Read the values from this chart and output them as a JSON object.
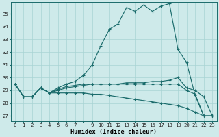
{
  "xlabel": "Humidex (Indice chaleur)",
  "bg_color": "#ceeaea",
  "line_color": "#1a6b6b",
  "grid_color": "#a8d4d4",
  "xtick_labels": [
    "0",
    "1",
    "2",
    "3",
    "4",
    "5",
    "6",
    "7",
    "",
    "9",
    "10",
    "11",
    "12",
    "13",
    "14",
    "15",
    "16",
    "17",
    "18",
    "19",
    "20",
    "21",
    "22",
    "23"
  ],
  "ytick_labels": [
    "27",
    "28",
    "29",
    "30",
    "31",
    "32",
    "33",
    "34",
    "35"
  ],
  "ylim": [
    26.6,
    35.9
  ],
  "xlim": [
    -0.5,
    23.5
  ],
  "series": [
    [
      29.5,
      28.5,
      28.5,
      29.2,
      28.8,
      29.2,
      29.5,
      29.7,
      30.2,
      31.0,
      32.5,
      33.8,
      34.2,
      35.5,
      35.2,
      35.7,
      35.2,
      35.6,
      35.8,
      32.2,
      31.2,
      28.6,
      27.0,
      27.0
    ],
    [
      29.5,
      28.5,
      28.5,
      29.2,
      28.8,
      29.0,
      29.2,
      29.3,
      29.4,
      29.5,
      29.5,
      29.5,
      29.5,
      29.6,
      29.6,
      29.6,
      29.7,
      29.7,
      29.8,
      30.0,
      29.2,
      29.0,
      28.5,
      27.0
    ],
    [
      29.5,
      28.5,
      28.5,
      29.2,
      28.8,
      28.8,
      28.8,
      28.8,
      28.8,
      28.7,
      28.7,
      28.6,
      28.5,
      28.4,
      28.3,
      28.2,
      28.1,
      28.0,
      27.9,
      27.8,
      27.6,
      27.3,
      27.0,
      27.0
    ],
    [
      29.5,
      28.5,
      28.5,
      29.2,
      28.8,
      29.1,
      29.3,
      29.4,
      29.5,
      29.5,
      29.5,
      29.5,
      29.5,
      29.5,
      29.5,
      29.5,
      29.5,
      29.5,
      29.5,
      29.5,
      29.0,
      28.7,
      27.0,
      27.0
    ]
  ]
}
